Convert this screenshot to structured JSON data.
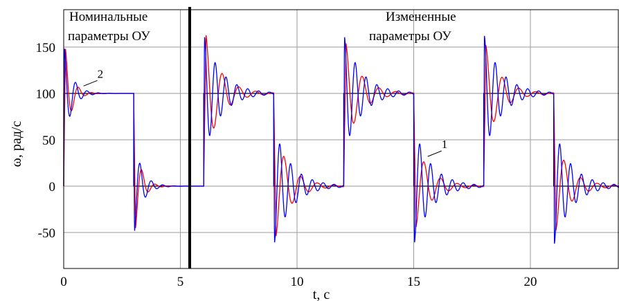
{
  "chart_data": {
    "type": "line",
    "title": "",
    "xlabel": "t, c",
    "ylabel": "ω, рад/с",
    "xlim": [
      0,
      24
    ],
    "ylim": [
      -90,
      190
    ],
    "x_ticks": [
      0,
      5,
      10,
      15,
      20
    ],
    "y_ticks": [
      -50,
      0,
      50,
      100,
      150
    ],
    "grid": true,
    "divider_x": 5.4,
    "annotations": [
      {
        "lines": [
          "Номинальные",
          "параметры ОУ"
        ],
        "position": "top-left"
      },
      {
        "lines": [
          "Измененные",
          "параметры ОУ"
        ],
        "position": "top-center"
      }
    ],
    "curve_labels": [
      {
        "text": "2",
        "x": 0.85,
        "y": 108
      },
      {
        "text": "1",
        "x": 15.6,
        "y": 32
      }
    ],
    "reference": {
      "name": "",
      "color": "#000000",
      "step_times": [
        0,
        3,
        6,
        9,
        12,
        15,
        18,
        21
      ],
      "levels": [
        100,
        0,
        100,
        0,
        100,
        0,
        100,
        0
      ]
    },
    "series": [
      {
        "color": "#ff0000",
        "segments": [
          {
            "t0": 0,
            "from": 0,
            "to": 100,
            "overshoot": 50,
            "decay": 3.6,
            "freq": 1.75,
            "delay": 0.07
          },
          {
            "t0": 3,
            "from": 100,
            "to": 0,
            "overshoot": 47,
            "decay": 3.6,
            "freq": 1.75,
            "delay": 0.07
          },
          {
            "t0": 6,
            "from": 0,
            "to": 100,
            "overshoot": 64,
            "decay": 1.55,
            "freq": 1.4,
            "delay": 0.09
          },
          {
            "t0": 9,
            "from": 100,
            "to": 0,
            "overshoot": 55,
            "decay": 1.55,
            "freq": 1.4,
            "delay": 0.09
          },
          {
            "t0": 12,
            "from": 0,
            "to": 100,
            "overshoot": 55,
            "decay": 1.55,
            "freq": 1.4,
            "delay": 0.09
          },
          {
            "t0": 15,
            "from": 100,
            "to": 0,
            "overshoot": 45,
            "decay": 1.55,
            "freq": 1.4,
            "delay": 0.09
          },
          {
            "t0": 18,
            "from": 0,
            "to": 100,
            "overshoot": 52,
            "decay": 1.55,
            "freq": 1.4,
            "delay": 0.09
          },
          {
            "t0": 21,
            "from": 100,
            "to": 0,
            "overshoot": 48,
            "decay": 1.55,
            "freq": 1.4,
            "delay": 0.09
          }
        ]
      },
      {
        "color": "#0000ff",
        "segments": [
          {
            "t0": 0,
            "from": 0,
            "to": 100,
            "overshoot": 50,
            "decay": 3.0,
            "freq": 2.05,
            "delay": 0.03
          },
          {
            "t0": 3,
            "from": 100,
            "to": 0,
            "overshoot": 50,
            "decay": 3.0,
            "freq": 2.05,
            "delay": 0.03
          },
          {
            "t0": 6,
            "from": 0,
            "to": 100,
            "overshoot": 62,
            "decay": 1.35,
            "freq": 2.15,
            "delay": 0.03
          },
          {
            "t0": 9,
            "from": 100,
            "to": 0,
            "overshoot": 62,
            "decay": 1.35,
            "freq": 2.15,
            "delay": 0.03
          },
          {
            "t0": 12,
            "from": 0,
            "to": 100,
            "overshoot": 62,
            "decay": 1.35,
            "freq": 2.15,
            "delay": 0.03
          },
          {
            "t0": 15,
            "from": 100,
            "to": 0,
            "overshoot": 62,
            "decay": 1.35,
            "freq": 2.15,
            "delay": 0.03
          },
          {
            "t0": 18,
            "from": 0,
            "to": 100,
            "overshoot": 62,
            "decay": 1.35,
            "freq": 2.15,
            "delay": 0.03
          },
          {
            "t0": 21,
            "from": 100,
            "to": 0,
            "overshoot": 62,
            "decay": 1.35,
            "freq": 2.15,
            "delay": 0.03
          }
        ]
      }
    ]
  }
}
